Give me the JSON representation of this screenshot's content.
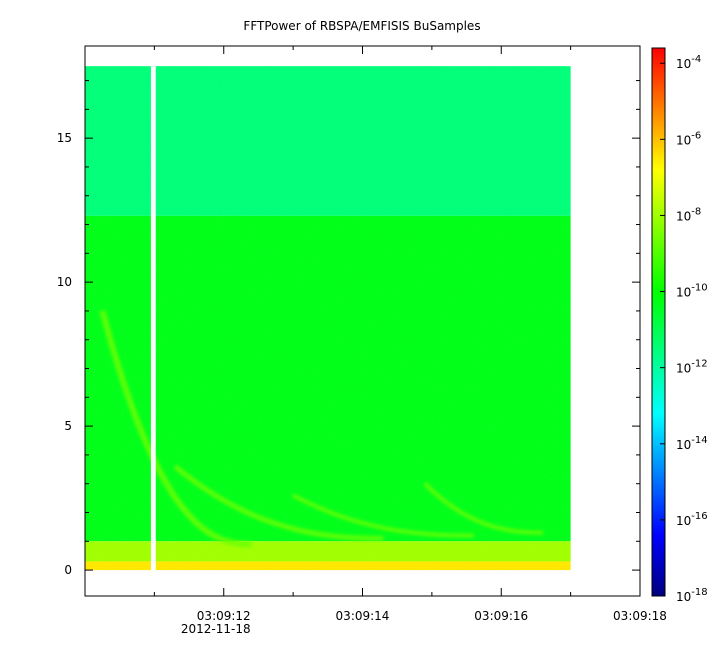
{
  "chart_data": {
    "type": "heatmap",
    "title": "FFTPower of RBSPA/EMFISIS  BuSamples",
    "xlabel": "",
    "ylabel": "",
    "x_ticks": [
      {
        "label": "03:09:12",
        "sublabel": "2012-11-18",
        "t": 12
      },
      {
        "label": "03:09:14",
        "sublabel": "",
        "t": 14
      },
      {
        "label": "03:09:16",
        "sublabel": "",
        "t": 16
      },
      {
        "label": "03:09:18",
        "sublabel": "",
        "t": 18
      }
    ],
    "x_minor_ticks": [
      11,
      13,
      15,
      17
    ],
    "xlim": [
      10.0,
      18.0
    ],
    "data_xlim": [
      10.0,
      17.0
    ],
    "data_gap_x": [
      10.95,
      11.02
    ],
    "y_ticks": [
      0,
      5,
      10,
      15
    ],
    "ylim": [
      -0.9,
      18.2
    ],
    "data_ylim": [
      0,
      17.5
    ],
    "colorbar": {
      "scale": "log",
      "range_exponents": [
        -18,
        -3.6
      ],
      "tick_base": "10",
      "tick_exponents": [
        "-4",
        "-6",
        "-8",
        "-10",
        "-12",
        "-14",
        "-16",
        "-18"
      ],
      "colors": [
        "#00007f",
        "#0000ff",
        "#0080ff",
        "#00ffff",
        "#00ff80",
        "#00ff00",
        "#80ff00",
        "#ffff00",
        "#ff8000",
        "#ff0000"
      ]
    },
    "power_bands": [
      {
        "y_range": [
          12.3,
          17.5
        ],
        "log10_power": -11.5
      },
      {
        "y_range": [
          1.0,
          12.3
        ],
        "log10_power": -10.3
      },
      {
        "y_range": [
          0.3,
          1.0
        ],
        "log10_power": -8.0
      },
      {
        "y_range": [
          0.0,
          0.3
        ],
        "log10_power": -6.5
      }
    ]
  }
}
